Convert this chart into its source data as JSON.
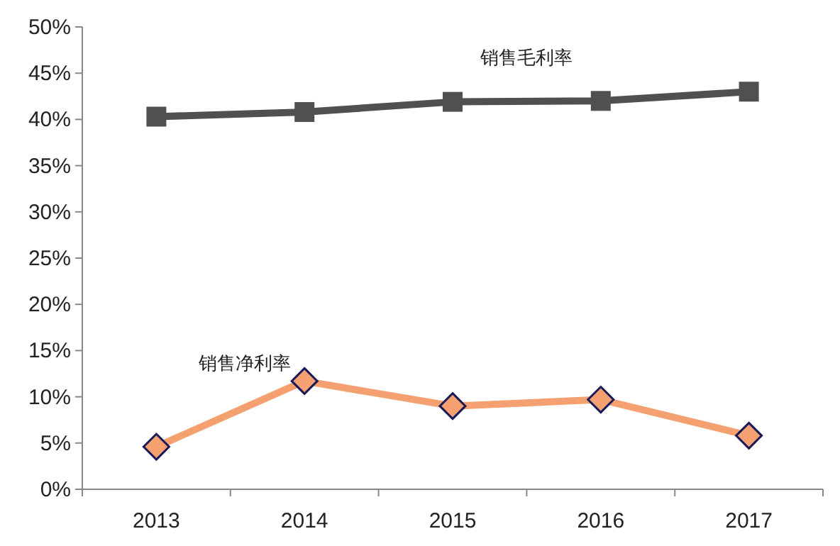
{
  "chart_data": {
    "type": "line",
    "categories": [
      "2013",
      "2014",
      "2015",
      "2016",
      "2017"
    ],
    "series": [
      {
        "name": "销售毛利率",
        "color": "#505050",
        "marker": "square",
        "values": [
          40.3,
          40.8,
          41.9,
          42.0,
          43.0
        ]
      },
      {
        "name": "销售净利率",
        "color": "#f4a070",
        "marker": "diamond",
        "values": [
          4.6,
          11.7,
          9.0,
          9.7,
          5.8
        ]
      }
    ],
    "ylim": [
      0,
      50
    ],
    "yticks": [
      {
        "value": 0,
        "label": "0%"
      },
      {
        "value": 5,
        "label": "5%"
      },
      {
        "value": 10,
        "label": "10%"
      },
      {
        "value": 15,
        "label": "15%"
      },
      {
        "value": 20,
        "label": "20%"
      },
      {
        "value": 25,
        "label": "25%"
      },
      {
        "value": 30,
        "label": "30%"
      },
      {
        "value": 35,
        "label": "35%"
      },
      {
        "value": 40,
        "label": "40%"
      },
      {
        "value": 45,
        "label": "45%"
      },
      {
        "value": 50,
        "label": "50%"
      }
    ],
    "grid": false,
    "legend": false,
    "line_style": "solid"
  }
}
